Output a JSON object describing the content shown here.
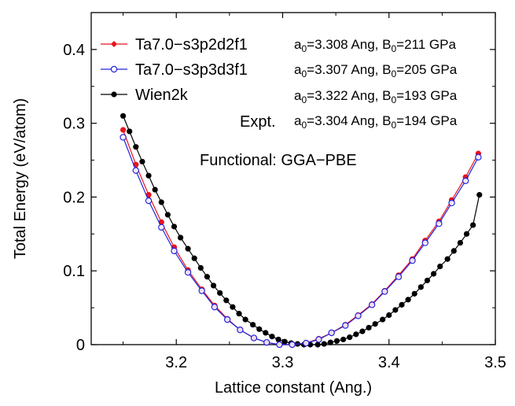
{
  "chart_data": {
    "type": "line",
    "xlabel": "Lattice constant (Ang.)",
    "ylabel": "Total Energy (eV/atom)",
    "xlim": [
      3.12,
      3.5
    ],
    "ylim": [
      0,
      0.45
    ],
    "x_ticks": [
      3.2,
      3.3,
      3.4,
      3.5
    ],
    "x_tick_labels": [
      "3.2",
      "3.3",
      "3.4",
      "3.5"
    ],
    "y_ticks": [
      0,
      0.1,
      0.2,
      0.3,
      0.4
    ],
    "y_tick_labels": [
      "0",
      "0.1",
      "0.2",
      "0.3",
      "0.4"
    ],
    "grid": false,
    "legend_position": "top-left",
    "functional_label": "Functional: GGA−PBE",
    "expt_label": "Expt.",
    "series": [
      {
        "name": "Ta7.0−s3p2d2f1",
        "color": "#e8141c",
        "marker": "filled-circle",
        "a0": "3.308",
        "B0": "211",
        "x": [
          3.15,
          3.162,
          3.174,
          3.186,
          3.198,
          3.211,
          3.224,
          3.236,
          3.248,
          3.26,
          3.273,
          3.285,
          3.297,
          3.309,
          3.322,
          3.334,
          3.346,
          3.359,
          3.371,
          3.384,
          3.396,
          3.409,
          3.422,
          3.434,
          3.447,
          3.459,
          3.472,
          3.484
        ],
        "y": [
          0.291,
          0.244,
          0.203,
          0.166,
          0.132,
          0.101,
          0.075,
          0.053,
          0.035,
          0.02,
          0.009,
          0.003,
          0.0,
          0.0,
          0.002,
          0.008,
          0.016,
          0.027,
          0.04,
          0.055,
          0.073,
          0.094,
          0.116,
          0.141,
          0.167,
          0.196,
          0.227,
          0.259
        ]
      },
      {
        "name": "Ta7.0−s3p3d3f1",
        "color": "#2222dd",
        "marker": "open-circle",
        "a0": "3.307",
        "B0": "205",
        "x": [
          3.15,
          3.162,
          3.174,
          3.186,
          3.198,
          3.211,
          3.224,
          3.236,
          3.248,
          3.26,
          3.273,
          3.285,
          3.297,
          3.309,
          3.322,
          3.334,
          3.346,
          3.359,
          3.371,
          3.384,
          3.396,
          3.409,
          3.422,
          3.434,
          3.447,
          3.459,
          3.472,
          3.484
        ],
        "y": [
          0.281,
          0.236,
          0.195,
          0.159,
          0.127,
          0.098,
          0.073,
          0.051,
          0.034,
          0.02,
          0.009,
          0.003,
          0.0,
          0.0,
          0.002,
          0.007,
          0.016,
          0.026,
          0.039,
          0.054,
          0.072,
          0.092,
          0.114,
          0.138,
          0.164,
          0.192,
          0.222,
          0.254
        ]
      },
      {
        "name": "Wien2k",
        "color": "#000000",
        "marker": "filled-circle",
        "a0": "3.322",
        "B0": "193",
        "x": [
          3.15,
          3.156,
          3.162,
          3.168,
          3.174,
          3.18,
          3.186,
          3.192,
          3.198,
          3.204,
          3.211,
          3.217,
          3.223,
          3.229,
          3.235,
          3.241,
          3.247,
          3.253,
          3.259,
          3.265,
          3.272,
          3.278,
          3.284,
          3.29,
          3.296,
          3.302,
          3.308,
          3.314,
          3.32,
          3.326,
          3.333,
          3.339,
          3.345,
          3.351,
          3.357,
          3.363,
          3.369,
          3.375,
          3.381,
          3.387,
          3.394,
          3.4,
          3.406,
          3.412,
          3.418,
          3.424,
          3.43,
          3.436,
          3.442,
          3.448,
          3.455,
          3.461,
          3.467,
          3.473,
          3.479,
          3.485
        ],
        "y": [
          0.31,
          0.289,
          0.268,
          0.248,
          0.229,
          0.21,
          0.193,
          0.176,
          0.16,
          0.145,
          0.13,
          0.117,
          0.104,
          0.092,
          0.08,
          0.07,
          0.06,
          0.051,
          0.042,
          0.034,
          0.027,
          0.021,
          0.016,
          0.011,
          0.007,
          0.004,
          0.002,
          0.001,
          0.0,
          0.0,
          0.0,
          0.001,
          0.003,
          0.005,
          0.007,
          0.01,
          0.014,
          0.018,
          0.023,
          0.028,
          0.034,
          0.04,
          0.047,
          0.054,
          0.061,
          0.069,
          0.078,
          0.087,
          0.096,
          0.106,
          0.116,
          0.127,
          0.138,
          0.15,
          0.162,
          0.203
        ]
      }
    ],
    "expt": {
      "a0": "3.304",
      "B0": "194"
    }
  }
}
